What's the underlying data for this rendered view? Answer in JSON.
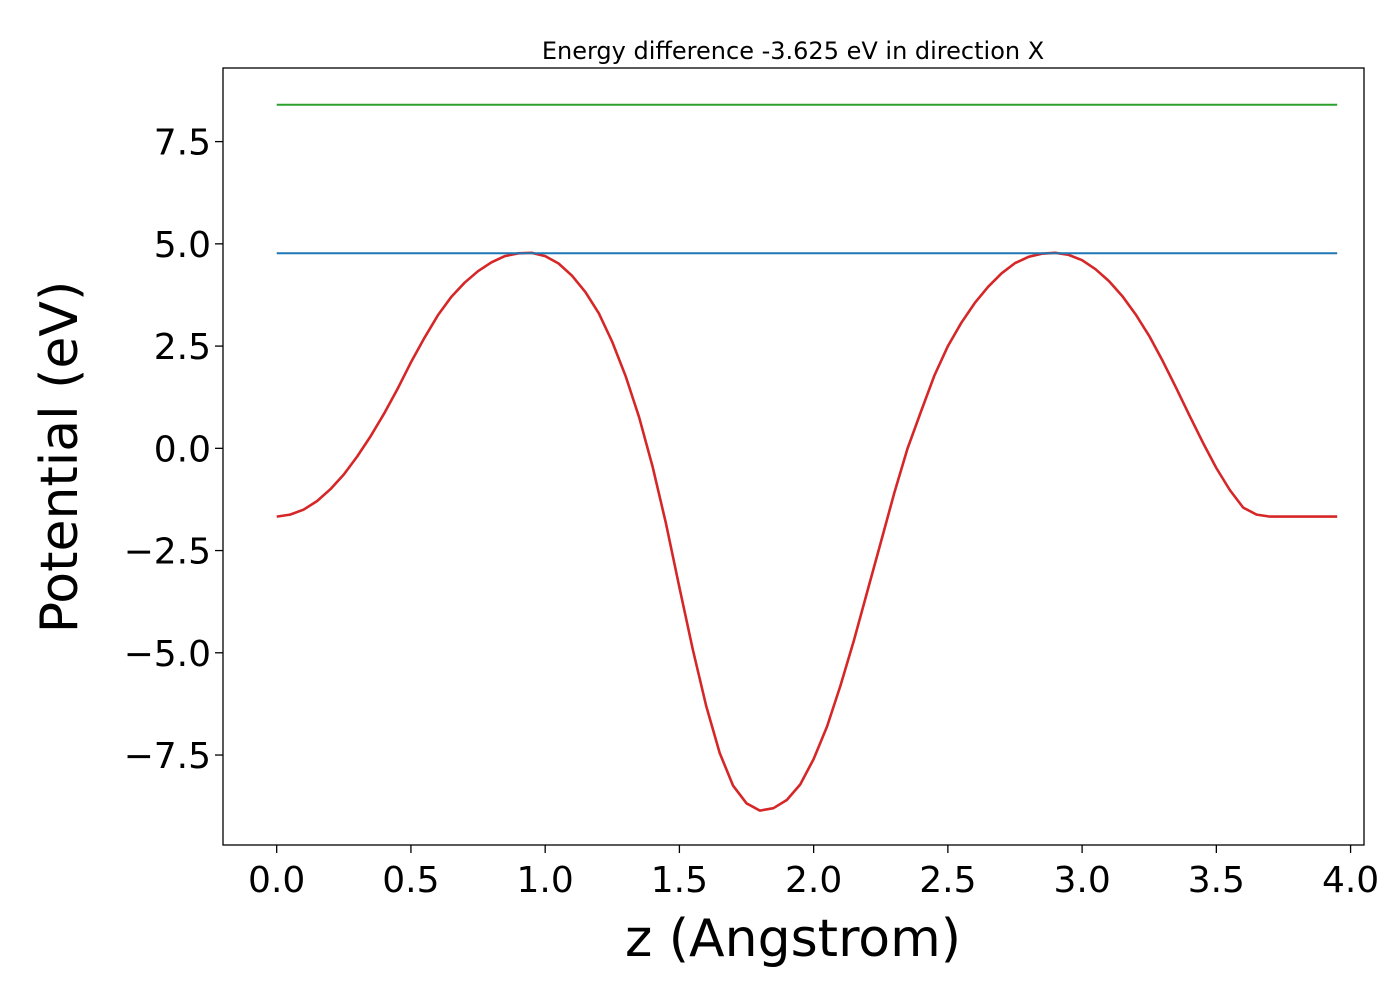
{
  "chart_data": {
    "type": "line",
    "title": "Energy difference -3.625 eV in direction X",
    "xlabel": "z (Angstrom)",
    "ylabel": "Potential (eV)",
    "xlim": [
      -0.2,
      4.05
    ],
    "ylim": [
      -9.7,
      9.3
    ],
    "xticks": [
      0.0,
      0.5,
      1.0,
      1.5,
      2.0,
      2.5,
      3.0,
      3.5,
      4.0
    ],
    "xtick_labels": [
      "0.0",
      "0.5",
      "1.0",
      "1.5",
      "2.0",
      "2.5",
      "3.0",
      "3.5",
      "4.0"
    ],
    "yticks": [
      -7.5,
      -5.0,
      -2.5,
      0.0,
      2.5,
      5.0,
      7.5
    ],
    "ytick_labels": [
      "−7.5",
      "−5.0",
      "−2.5",
      "0.0",
      "2.5",
      "5.0",
      "7.5"
    ],
    "grid": false,
    "legend": "none",
    "series": [
      {
        "color": "#d62728",
        "x": [
          0.0,
          0.05,
          0.1,
          0.15,
          0.2,
          0.25,
          0.3,
          0.35,
          0.4,
          0.45,
          0.5,
          0.55,
          0.6,
          0.65,
          0.7,
          0.75,
          0.8,
          0.85,
          0.9,
          0.95,
          1.0,
          1.05,
          1.1,
          1.15,
          1.2,
          1.25,
          1.3,
          1.35,
          1.4,
          1.45,
          1.5,
          1.55,
          1.6,
          1.65,
          1.7,
          1.75,
          1.8,
          1.85,
          1.9,
          1.95,
          2.0,
          2.05,
          2.1,
          2.15,
          2.2,
          2.25,
          2.3,
          2.35,
          2.4,
          2.45,
          2.5,
          2.55,
          2.6,
          2.65,
          2.7,
          2.75,
          2.8,
          2.85,
          2.9,
          2.95,
          3.0,
          3.05,
          3.1,
          3.15,
          3.2,
          3.25,
          3.3,
          3.35,
          3.4,
          3.45,
          3.5,
          3.55,
          3.6,
          3.65,
          3.7,
          3.75,
          3.8,
          3.85,
          3.9,
          3.95
        ],
        "y": [
          -1.67,
          -1.62,
          -1.5,
          -1.29,
          -1.0,
          -0.64,
          -0.2,
          0.3,
          0.85,
          1.45,
          2.1,
          2.7,
          3.25,
          3.7,
          4.05,
          4.33,
          4.55,
          4.7,
          4.77,
          4.78,
          4.7,
          4.52,
          4.22,
          3.82,
          3.3,
          2.6,
          1.76,
          0.76,
          -0.45,
          -1.84,
          -3.4,
          -4.92,
          -6.3,
          -7.45,
          -8.25,
          -8.68,
          -8.86,
          -8.8,
          -8.6,
          -8.22,
          -7.6,
          -6.8,
          -5.8,
          -4.7,
          -3.5,
          -2.3,
          -1.1,
          0.0,
          0.9,
          1.78,
          2.5,
          3.07,
          3.55,
          3.95,
          4.28,
          4.53,
          4.68,
          4.76,
          4.78,
          4.73,
          4.6,
          4.38,
          4.09,
          3.72,
          3.27,
          2.75,
          2.14,
          1.48,
          0.8,
          0.14,
          -0.48,
          -1.02,
          -1.45,
          -1.62,
          -1.67,
          -1.67,
          -1.67,
          -1.67,
          -1.67,
          -1.67
        ]
      },
      {
        "color": "#1f77b4",
        "x": [
          0.0,
          3.95
        ],
        "y": [
          4.77,
          4.77
        ]
      },
      {
        "color": "#2ca02c",
        "x": [
          0.0,
          3.95
        ],
        "y": [
          8.4,
          8.4
        ]
      }
    ]
  }
}
